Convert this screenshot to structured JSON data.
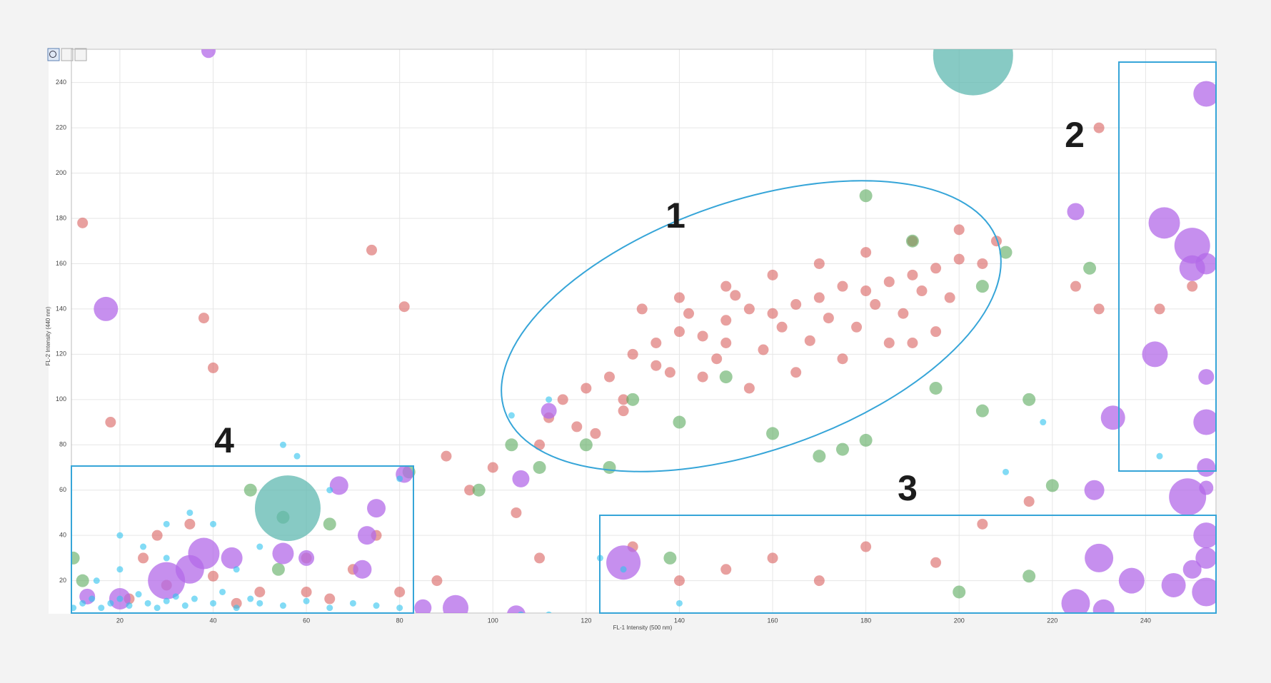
{
  "chart_data": {
    "type": "scatter",
    "xlabel": "FL-1 Intensity (500 nm)",
    "ylabel": "FL-2 Intensity (440 nm)",
    "xlim": [
      9.6,
      255.1
    ],
    "ylim": [
      5.7,
      254.7
    ],
    "xticks": [
      20,
      40,
      60,
      80,
      100,
      120,
      140,
      160,
      180,
      200,
      220,
      240
    ],
    "yticks": [
      20,
      40,
      60,
      80,
      100,
      120,
      140,
      160,
      180,
      200,
      220,
      240
    ],
    "grid": true,
    "annotations": [
      "1",
      "2",
      "3",
      "4"
    ],
    "series": [
      {
        "color": "#d9605f",
        "marker_size": 15,
        "x": [
          130,
          135,
          140,
          145,
          150,
          155,
          160,
          165,
          170,
          175,
          180,
          185,
          190,
          195,
          200,
          125,
          120,
          115,
          112,
          118,
          128,
          138,
          148,
          158,
          168,
          178,
          188,
          198,
          205,
          208,
          200,
          190,
          180,
          170,
          160,
          150,
          140,
          132,
          145,
          155,
          165,
          175,
          185,
          195,
          150,
          162,
          172,
          182,
          192,
          142,
          152,
          135,
          128,
          122,
          110,
          12,
          74,
          38,
          40,
          81,
          18,
          100,
          90,
          95,
          105,
          110,
          130,
          140,
          150,
          160,
          170,
          180,
          195,
          205,
          215,
          225,
          230,
          243,
          250,
          230,
          190,
          88,
          70,
          60,
          50,
          40,
          30,
          22,
          25,
          45,
          65,
          75,
          80,
          60,
          35,
          28
        ],
        "y": [
          120,
          125,
          130,
          128,
          135,
          140,
          138,
          142,
          145,
          150,
          148,
          152,
          155,
          158,
          162,
          110,
          105,
          100,
          92,
          88,
          100,
          112,
          118,
          122,
          126,
          132,
          138,
          145,
          160,
          170,
          175,
          170,
          165,
          160,
          155,
          150,
          145,
          140,
          110,
          105,
          112,
          118,
          125,
          130,
          125,
          132,
          136,
          142,
          148,
          138,
          146,
          115,
          95,
          85,
          80,
          178,
          166,
          136,
          114,
          141,
          90,
          70,
          75,
          60,
          50,
          30,
          35,
          20,
          25,
          30,
          20,
          35,
          28,
          45,
          55,
          150,
          140,
          140,
          150,
          220,
          125,
          20,
          25,
          30,
          15,
          22,
          18,
          12,
          30,
          10,
          12,
          40,
          15,
          15,
          45,
          40
        ]
      },
      {
        "color": "#5aaa5e",
        "marker_size": 18,
        "x": [
          180,
          210,
          205,
          190,
          150,
          130,
          120,
          125,
          140,
          160,
          170,
          175,
          180,
          195,
          205,
          215,
          228,
          220,
          200,
          215,
          138,
          110,
          104,
          55,
          65,
          48,
          10,
          12,
          54,
          82,
          97
        ],
        "y": [
          190,
          165,
          150,
          170,
          110,
          100,
          80,
          70,
          90,
          85,
          75,
          78,
          82,
          105,
          95,
          100,
          158,
          62,
          15,
          22,
          30,
          70,
          80,
          48,
          45,
          60,
          30,
          20,
          25,
          68,
          60
        ]
      },
      {
        "color": "#b36ae8",
        "x": [
          17,
          39,
          253,
          244,
          250,
          253,
          250,
          242,
          253,
          253,
          253,
          253,
          249,
          253,
          253,
          250,
          253,
          246,
          237,
          230,
          229,
          225,
          231,
          233,
          225,
          128,
          112,
          106,
          105,
          92,
          85,
          73,
          72,
          75,
          81,
          67,
          38,
          30,
          35,
          44,
          55,
          60,
          13,
          20
        ],
        "y": [
          140,
          254,
          235,
          178,
          168,
          160,
          158,
          120,
          110,
          90,
          70,
          61,
          57,
          40,
          30,
          25,
          15,
          18,
          20,
          30,
          60,
          10,
          7,
          92,
          183,
          28,
          95,
          65,
          5,
          8,
          8,
          40,
          25,
          52,
          67,
          62,
          32,
          20,
          25,
          30,
          32,
          30,
          13,
          12
        ],
        "sizes": [
          34,
          20,
          36,
          44,
          50,
          30,
          36,
          36,
          22,
          36,
          26,
          20,
          52,
          36,
          30,
          26,
          40,
          34,
          36,
          40,
          28,
          40,
          30,
          34,
          24,
          48,
          22,
          24,
          26,
          36,
          24,
          26,
          26,
          26,
          24,
          26,
          44,
          52,
          40,
          30,
          30,
          22,
          22,
          30
        ]
      },
      {
        "color": "#2ec3ef",
        "marker_size": 9,
        "x": [
          10,
          12,
          14,
          16,
          18,
          20,
          22,
          24,
          26,
          28,
          30,
          32,
          34,
          36,
          40,
          42,
          45,
          48,
          50,
          55,
          60,
          65,
          70,
          75,
          80,
          15,
          20,
          25,
          30,
          35,
          40,
          55,
          58,
          65,
          80,
          104,
          112,
          210,
          218,
          243,
          128,
          123,
          112,
          106,
          140,
          20,
          30,
          45,
          50
        ],
        "y": [
          8,
          10,
          12,
          8,
          10,
          12,
          9,
          14,
          10,
          8,
          11,
          13,
          9,
          12,
          10,
          15,
          8,
          12,
          10,
          9,
          11,
          8,
          10,
          9,
          8,
          20,
          25,
          35,
          45,
          50,
          45,
          80,
          75,
          60,
          65,
          93,
          100,
          68,
          90,
          75,
          25,
          30,
          5,
          5,
          10,
          40,
          30,
          25,
          35
        ]
      },
      {
        "color": "#5fb8b0",
        "x": [
          56,
          203
        ],
        "y": [
          52,
          252
        ],
        "sizes": [
          92,
          112
        ]
      }
    ]
  }
}
